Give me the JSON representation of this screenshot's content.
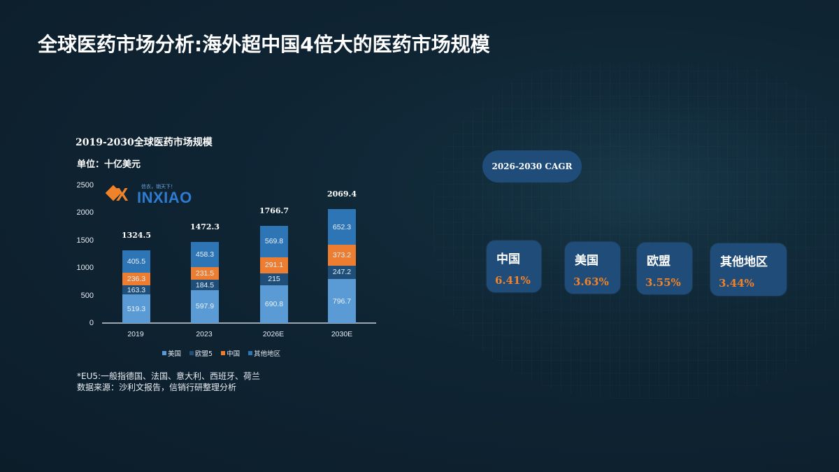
{
  "slide": {
    "title": "全球医药市场分析:海外超中国4倍大的医药市场规模"
  },
  "logo": {
    "name": "INXIAO",
    "mark": "X",
    "slogan": "信衣，销天下！"
  },
  "chart_data": {
    "type": "bar",
    "stacked": true,
    "title": "2019-2030全球医药市场规模",
    "unit_label": "单位：十亿美元",
    "xlabel": "",
    "ylabel": "",
    "ylim": [
      0,
      2500
    ],
    "yticks": [
      "2500",
      "2000",
      "1500",
      "1000",
      "500",
      "0"
    ],
    "grid": false,
    "legend_position": "bottom",
    "categories": [
      "2019",
      "2023",
      "2026E",
      "2030E"
    ],
    "series": [
      {
        "name": "美国",
        "color": "#5b9bd5",
        "values": [
          519.3,
          597.9,
          690.8,
          796.7
        ]
      },
      {
        "name": "欧盟5",
        "color": "#1f4e79",
        "values": [
          163.3,
          184.5,
          215,
          247.2
        ]
      },
      {
        "name": "中国",
        "color": "#ed7d31",
        "values": [
          236.3,
          231.5,
          291.1,
          373.2
        ]
      },
      {
        "name": "其他地区",
        "color": "#2e75b6",
        "values": [
          405.5,
          458.3,
          569.8,
          652.3
        ]
      }
    ],
    "series_labels": [
      [
        "519.3",
        "597.9",
        "690.8",
        "796.7"
      ],
      [
        "163.3",
        "184.5",
        "215",
        "247.2"
      ],
      [
        "236.3",
        "231.5",
        "291.1",
        "373.2"
      ],
      [
        "405.5",
        "458.3",
        "569.8",
        "652.3"
      ]
    ],
    "totals": [
      "1324.5",
      "1472.3",
      "1766.7",
      "2069.4"
    ]
  },
  "notes": {
    "line1": "*EU5:一般指德国、法国、意大利、西班牙、荷兰",
    "line2": "数据来源：沙利文报告，信销行研整理分析"
  },
  "cagr": {
    "header": "2026-2030 CAGR",
    "accent_color": "#f0832a",
    "card_color": "#1f4c79",
    "items": [
      {
        "region": "中国",
        "rate": "6.41%"
      },
      {
        "region": "美国",
        "rate": "3.63%"
      },
      {
        "region": "欧盟",
        "rate": "3.55%"
      },
      {
        "region": "其他地区",
        "rate": "3.44%"
      }
    ]
  }
}
